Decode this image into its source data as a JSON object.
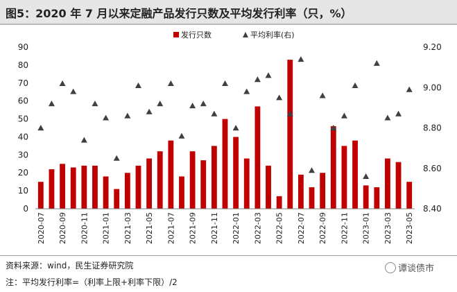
{
  "header": {
    "title": "图5：2020 年 7 月以来定融产品发行只数及平均发行利率（只，%）"
  },
  "footer": {
    "source": "资料来源：wind，民生证券研究院",
    "note": "注：平均发行利率=（利率上限+利率下限）/2",
    "brand": "谭谈债市",
    "brand_icon": "wechat-bubble-icon"
  },
  "chart_data": {
    "type": "bar",
    "title": "",
    "legend_position": "top-center",
    "grid": false,
    "colors": {
      "bar": "#c00000",
      "marker": "#404040",
      "axis": "#7f7f7f"
    },
    "categories": [
      "2020-07",
      "2020-08",
      "2020-09",
      "2020-10",
      "2020-11",
      "2020-12",
      "2021-01",
      "2021-02",
      "2021-03",
      "2021-04",
      "2021-05",
      "2021-06",
      "2021-07",
      "2021-08",
      "2021-09",
      "2021-10",
      "2021-11",
      "2021-12",
      "2022-01",
      "2022-02",
      "2022-03",
      "2022-04",
      "2022-05",
      "2022-06",
      "2022-07",
      "2022-08",
      "2022-09",
      "2022-10",
      "2022-11",
      "2022-12",
      "2023-01",
      "2023-02",
      "2023-03",
      "2023-04",
      "2023-05"
    ],
    "x_tick_labels": [
      "2020-07",
      "2020-09",
      "2020-11",
      "2021-01",
      "2021-03",
      "2021-05",
      "2021-07",
      "2021-09",
      "2021-11",
      "2022-01",
      "2022-03",
      "2022-05",
      "2022-07",
      "2022-09",
      "2022-11",
      "2023-01",
      "2023-03",
      "2023-05"
    ],
    "series": [
      {
        "name": "发行只数",
        "kind": "bar",
        "axis": "left",
        "values": [
          15,
          22,
          25,
          23,
          24,
          24,
          18,
          11,
          20,
          24,
          28,
          32,
          38,
          18,
          32,
          27,
          35,
          50,
          40,
          28,
          57,
          24,
          7,
          83,
          19,
          12,
          20,
          46,
          35,
          38,
          13,
          12,
          28,
          26,
          15
        ]
      },
      {
        "name": "平均利率(右)",
        "kind": "scatter",
        "marker": "triangle",
        "axis": "right",
        "values": [
          8.8,
          8.92,
          9.02,
          8.98,
          8.74,
          8.92,
          8.85,
          8.65,
          8.86,
          9.01,
          8.88,
          8.92,
          9.02,
          8.76,
          8.91,
          8.92,
          8.87,
          9.02,
          8.8,
          8.98,
          9.04,
          9.06,
          8.95,
          8.87,
          9.14,
          8.59,
          8.96,
          8.8,
          8.86,
          9.01,
          8.56,
          9.12,
          8.85,
          8.87,
          8.99
        ]
      }
    ],
    "y_left": {
      "ylim": [
        0,
        90
      ],
      "ticks": [
        "0",
        "10",
        "20",
        "30",
        "40",
        "50",
        "60",
        "70",
        "80",
        "90"
      ]
    },
    "y_right": {
      "ylim": [
        8.4,
        9.2
      ],
      "ticks": [
        "8.40",
        "8.60",
        "8.80",
        "9.00",
        "9.20"
      ]
    }
  }
}
